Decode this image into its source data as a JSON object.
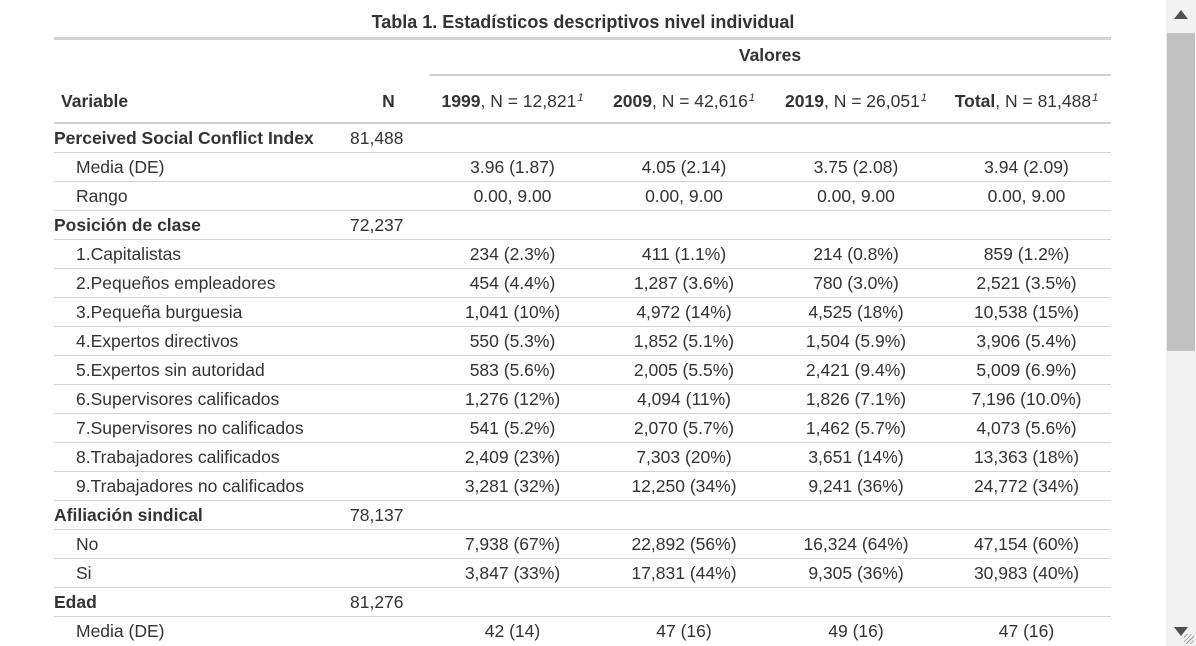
{
  "title": "Tabla 1. Estadísticos descriptivos nivel individual",
  "spanner": "Valores",
  "header": {
    "variable": "Variable",
    "n": "N",
    "columns": [
      {
        "bold": "1999",
        "rest": ", N = 12,821",
        "fn": "1"
      },
      {
        "bold": "2009",
        "rest": ", N = 42,616",
        "fn": "1"
      },
      {
        "bold": "2019",
        "rest": ", N = 26,051",
        "fn": "1"
      },
      {
        "bold": "Total",
        "rest": ", N = 81,488",
        "fn": "1"
      }
    ]
  },
  "rows": [
    {
      "label": "Perceived Social Conflict Index",
      "n": "81,488",
      "group": true,
      "values": [
        "",
        "",
        "",
        ""
      ]
    },
    {
      "label": "Media (DE)",
      "n": "",
      "group": false,
      "values": [
        "3.96 (1.87)",
        "4.05 (2.14)",
        "3.75 (2.08)",
        "3.94 (2.09)"
      ]
    },
    {
      "label": "Rango",
      "n": "",
      "group": false,
      "values": [
        "0.00, 9.00",
        "0.00, 9.00",
        "0.00, 9.00",
        "0.00, 9.00"
      ]
    },
    {
      "label": "Posición de clase",
      "n": "72,237",
      "group": true,
      "values": [
        "",
        "",
        "",
        ""
      ]
    },
    {
      "label": "1.Capitalistas",
      "n": "",
      "group": false,
      "values": [
        "234 (2.3%)",
        "411 (1.1%)",
        "214 (0.8%)",
        "859 (1.2%)"
      ]
    },
    {
      "label": "2.Pequeños empleadores",
      "n": "",
      "group": false,
      "values": [
        "454 (4.4%)",
        "1,287 (3.6%)",
        "780 (3.0%)",
        "2,521 (3.5%)"
      ]
    },
    {
      "label": "3.Pequeña burguesia",
      "n": "",
      "group": false,
      "values": [
        "1,041 (10%)",
        "4,972 (14%)",
        "4,525 (18%)",
        "10,538 (15%)"
      ]
    },
    {
      "label": "4.Expertos directivos",
      "n": "",
      "group": false,
      "values": [
        "550 (5.3%)",
        "1,852 (5.1%)",
        "1,504 (5.9%)",
        "3,906 (5.4%)"
      ]
    },
    {
      "label": "5.Expertos sin autoridad",
      "n": "",
      "group": false,
      "values": [
        "583 (5.6%)",
        "2,005 (5.5%)",
        "2,421 (9.4%)",
        "5,009 (6.9%)"
      ]
    },
    {
      "label": "6.Supervisores calificados",
      "n": "",
      "group": false,
      "values": [
        "1,276 (12%)",
        "4,094 (11%)",
        "1,826 (7.1%)",
        "7,196 (10.0%)"
      ]
    },
    {
      "label": "7.Supervisores no calificados",
      "n": "",
      "group": false,
      "values": [
        "541 (5.2%)",
        "2,070 (5.7%)",
        "1,462 (5.7%)",
        "4,073 (5.6%)"
      ]
    },
    {
      "label": "8.Trabajadores calificados",
      "n": "",
      "group": false,
      "values": [
        "2,409 (23%)",
        "7,303 (20%)",
        "3,651 (14%)",
        "13,363 (18%)"
      ]
    },
    {
      "label": "9.Trabajadores no calificados",
      "n": "",
      "group": false,
      "values": [
        "3,281 (32%)",
        "12,250 (34%)",
        "9,241 (36%)",
        "24,772 (34%)"
      ]
    },
    {
      "label": "Afiliación sindical",
      "n": "78,137",
      "group": true,
      "values": [
        "",
        "",
        "",
        ""
      ]
    },
    {
      "label": "No",
      "n": "",
      "group": false,
      "values": [
        "7,938 (67%)",
        "22,892 (56%)",
        "16,324 (64%)",
        "47,154 (60%)"
      ]
    },
    {
      "label": "Si",
      "n": "",
      "group": false,
      "values": [
        "3,847 (33%)",
        "17,831 (44%)",
        "9,305 (36%)",
        "30,983 (40%)"
      ]
    },
    {
      "label": "Edad",
      "n": "81,276",
      "group": true,
      "values": [
        "",
        "",
        "",
        ""
      ]
    },
    {
      "label": "Media (DE)",
      "n": "",
      "group": false,
      "values": [
        "42 (14)",
        "47 (16)",
        "49 (16)",
        "47 (16)"
      ]
    }
  ]
}
